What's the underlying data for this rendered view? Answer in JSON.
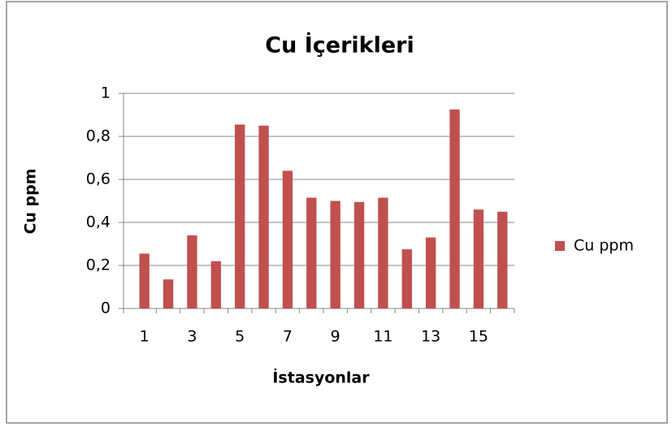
{
  "chart_data": {
    "type": "bar",
    "title": "Cu İçerikleri",
    "x_label": "İstasyonlar",
    "y_label": "Cu ppm",
    "categories": [
      "1",
      null,
      "3",
      null,
      "5",
      null,
      "7",
      null,
      "9",
      null,
      "11",
      null,
      "13",
      null,
      "15",
      null
    ],
    "series": [
      {
        "name": "Cu ppm",
        "color": "#c0504d",
        "values": [
          0.255,
          0.135,
          0.34,
          0.22,
          0.855,
          0.85,
          0.64,
          0.515,
          0.5,
          0.495,
          0.515,
          0.275,
          0.33,
          0.925,
          0.46,
          0.45
        ]
      }
    ],
    "ylim": [
      0,
      1
    ],
    "yticks": [
      0,
      {
        "value": 0.2,
        "label": "0,2"
      },
      {
        "value": 0.4,
        "label": "0,4"
      },
      {
        "value": 0.6,
        "label": "0,6"
      },
      {
        "value": 0.8,
        "label": "0,8"
      },
      1
    ],
    "grid": true,
    "legend": "right"
  }
}
